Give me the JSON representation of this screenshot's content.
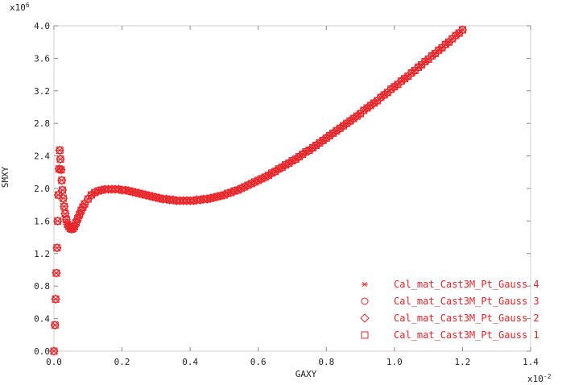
{
  "chart_data": {
    "type": "scatter",
    "title": "",
    "xlabel": "GAXY",
    "ylabel": "SMXY",
    "x_multiplier_label": "x10",
    "x_multiplier_exp": "-2",
    "y_multiplier_label": "x10",
    "y_multiplier_exp": "6",
    "xlim": [
      0.0,
      1.4
    ],
    "ylim": [
      0.0,
      4.0
    ],
    "x_ticks": [
      "0.0",
      "0.2",
      "0.4",
      "0.6",
      "0.8",
      "1.0",
      "1.2",
      "1.4"
    ],
    "y_ticks": [
      "0.0",
      "0.4",
      "0.8",
      "1.2",
      "1.6",
      "2.0",
      "2.4",
      "2.8",
      "3.2",
      "3.6",
      "4.0"
    ],
    "grid": false,
    "legend_position": "bottom-right",
    "color": "#e8262a",
    "legend": [
      {
        "label": "Cal_mat_Cast3M_Pt_Gauss 4",
        "marker": "asterisk"
      },
      {
        "label": "Cal_mat_Cast3M_Pt_Gauss 3",
        "marker": "circle"
      },
      {
        "label": "Cal_mat_Cast3M_Pt_Gauss 2",
        "marker": "diamond"
      },
      {
        "label": "Cal_mat_Cast3M_Pt_Gauss 1",
        "marker": "square"
      }
    ],
    "series": [
      {
        "name": "Cal_mat_Cast3M_Pt_Gauss",
        "points": [
          [
            0.0,
            0.0
          ],
          [
            0.003,
            0.32
          ],
          [
            0.005,
            0.64
          ],
          [
            0.007,
            0.96
          ],
          [
            0.009,
            1.27
          ],
          [
            0.011,
            1.6
          ],
          [
            0.013,
            1.92
          ],
          [
            0.015,
            2.24
          ],
          [
            0.017,
            2.47
          ],
          [
            0.019,
            2.36
          ],
          [
            0.021,
            2.23
          ],
          [
            0.023,
            2.1
          ],
          [
            0.025,
            1.98
          ],
          [
            0.027,
            1.88
          ],
          [
            0.03,
            1.78
          ],
          [
            0.033,
            1.69
          ],
          [
            0.036,
            1.62
          ],
          [
            0.04,
            1.56
          ],
          [
            0.044,
            1.53
          ],
          [
            0.048,
            1.51
          ],
          [
            0.052,
            1.5
          ],
          [
            0.056,
            1.51
          ],
          [
            0.06,
            1.53
          ],
          [
            0.065,
            1.58
          ],
          [
            0.07,
            1.63
          ],
          [
            0.075,
            1.68
          ],
          [
            0.08,
            1.73
          ],
          [
            0.085,
            1.77
          ],
          [
            0.09,
            1.81
          ],
          [
            0.1,
            1.87
          ],
          [
            0.11,
            1.92
          ],
          [
            0.12,
            1.95
          ],
          [
            0.13,
            1.97
          ],
          [
            0.14,
            1.98
          ],
          [
            0.15,
            1.99
          ],
          [
            0.16,
            1.99
          ],
          [
            0.17,
            1.99
          ],
          [
            0.18,
            1.99
          ],
          [
            0.19,
            1.99
          ],
          [
            0.2,
            1.98
          ],
          [
            0.21,
            1.98
          ],
          [
            0.22,
            1.97
          ],
          [
            0.23,
            1.96
          ],
          [
            0.24,
            1.95
          ],
          [
            0.25,
            1.94
          ],
          [
            0.26,
            1.93
          ],
          [
            0.27,
            1.92
          ],
          [
            0.28,
            1.91
          ],
          [
            0.29,
            1.9
          ],
          [
            0.3,
            1.89
          ],
          [
            0.31,
            1.88
          ],
          [
            0.32,
            1.87
          ],
          [
            0.33,
            1.87
          ],
          [
            0.34,
            1.86
          ],
          [
            0.35,
            1.86
          ],
          [
            0.36,
            1.85
          ],
          [
            0.37,
            1.85
          ],
          [
            0.38,
            1.85
          ],
          [
            0.39,
            1.85
          ],
          [
            0.4,
            1.85
          ],
          [
            0.41,
            1.85
          ],
          [
            0.42,
            1.86
          ],
          [
            0.43,
            1.86
          ],
          [
            0.44,
            1.87
          ],
          [
            0.45,
            1.87
          ],
          [
            0.46,
            1.88
          ],
          [
            0.47,
            1.89
          ],
          [
            0.48,
            1.9
          ],
          [
            0.49,
            1.91
          ],
          [
            0.5,
            1.92
          ],
          [
            0.51,
            1.94
          ],
          [
            0.52,
            1.95
          ],
          [
            0.53,
            1.97
          ],
          [
            0.54,
            1.98
          ],
          [
            0.55,
            2.0
          ],
          [
            0.56,
            2.02
          ],
          [
            0.57,
            2.04
          ],
          [
            0.58,
            2.06
          ],
          [
            0.59,
            2.08
          ],
          [
            0.6,
            2.1
          ],
          [
            0.61,
            2.12
          ],
          [
            0.62,
            2.14
          ],
          [
            0.63,
            2.16
          ],
          [
            0.64,
            2.19
          ],
          [
            0.65,
            2.21
          ],
          [
            0.66,
            2.24
          ],
          [
            0.67,
            2.26
          ],
          [
            0.68,
            2.29
          ],
          [
            0.69,
            2.31
          ],
          [
            0.7,
            2.34
          ],
          [
            0.71,
            2.36
          ],
          [
            0.72,
            2.39
          ],
          [
            0.73,
            2.42
          ],
          [
            0.74,
            2.45
          ],
          [
            0.75,
            2.47
          ],
          [
            0.76,
            2.5
          ],
          [
            0.77,
            2.53
          ],
          [
            0.78,
            2.56
          ],
          [
            0.79,
            2.59
          ],
          [
            0.8,
            2.62
          ],
          [
            0.81,
            2.65
          ],
          [
            0.82,
            2.68
          ],
          [
            0.83,
            2.71
          ],
          [
            0.84,
            2.74
          ],
          [
            0.85,
            2.77
          ],
          [
            0.86,
            2.8
          ],
          [
            0.87,
            2.83
          ],
          [
            0.88,
            2.86
          ],
          [
            0.89,
            2.89
          ],
          [
            0.9,
            2.92
          ],
          [
            0.91,
            2.96
          ],
          [
            0.92,
            2.99
          ],
          [
            0.93,
            3.02
          ],
          [
            0.94,
            3.05
          ],
          [
            0.95,
            3.08
          ],
          [
            0.96,
            3.12
          ],
          [
            0.97,
            3.15
          ],
          [
            0.98,
            3.18
          ],
          [
            0.99,
            3.22
          ],
          [
            1.0,
            3.25
          ],
          [
            1.01,
            3.28
          ],
          [
            1.02,
            3.32
          ],
          [
            1.03,
            3.35
          ],
          [
            1.04,
            3.38
          ],
          [
            1.05,
            3.42
          ],
          [
            1.06,
            3.45
          ],
          [
            1.07,
            3.49
          ],
          [
            1.08,
            3.52
          ],
          [
            1.09,
            3.56
          ],
          [
            1.1,
            3.59
          ],
          [
            1.11,
            3.63
          ],
          [
            1.12,
            3.66
          ],
          [
            1.13,
            3.7
          ],
          [
            1.14,
            3.73
          ],
          [
            1.15,
            3.77
          ],
          [
            1.16,
            3.8
          ],
          [
            1.17,
            3.84
          ],
          [
            1.18,
            3.88
          ],
          [
            1.19,
            3.91
          ],
          [
            1.2,
            3.95
          ]
        ]
      }
    ]
  }
}
